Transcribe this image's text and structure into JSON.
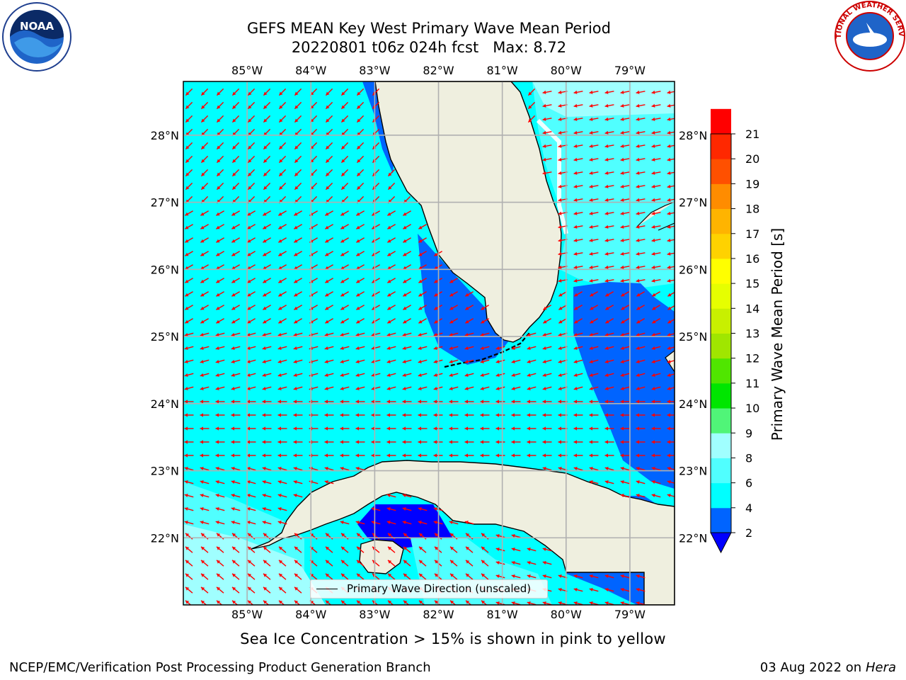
{
  "title": {
    "line1": "GEFS MEAN Key West Primary Wave Mean Period",
    "line2": "20220801 t06z 024h fcst   Max: 8.72"
  },
  "logos": {
    "left": "noaa-logo",
    "right": "national-weather-service-logo",
    "noaa_text": "NOAA",
    "nws_text": "NATIONAL WEATHER SERVICE"
  },
  "map": {
    "lon_labels": [
      "85°W",
      "84°W",
      "83°W",
      "82°W",
      "81°W",
      "80°W",
      "79°W"
    ],
    "lat_labels": [
      "28°N",
      "27°N",
      "26°N",
      "25°N",
      "24°N",
      "23°N",
      "22°N"
    ],
    "extent": {
      "lon_min": -86.0,
      "lon_max": -78.3,
      "lat_min": 21.0,
      "lat_max": 28.8
    },
    "gridlines": true,
    "vector_color": "#ff0000",
    "land_color": "#efefdf",
    "legend_label": "Primary Wave Direction (unscaled)"
  },
  "colorbar": {
    "label": "Primary Wave Mean Period [s]",
    "ticks": [
      "2",
      "4",
      "6",
      "8",
      "9",
      "10",
      "11",
      "12",
      "13",
      "14",
      "15",
      "16",
      "17",
      "18",
      "19",
      "20",
      "21"
    ],
    "colors": [
      "#0064ff",
      "#00ffff",
      "#50ffff",
      "#a0ffff",
      "#50f578",
      "#00e600",
      "#50e600",
      "#a0e600",
      "#c8f000",
      "#e6ff00",
      "#ffff00",
      "#ffd200",
      "#ffb400",
      "#ff8c00",
      "#ff5000",
      "#ff2800",
      "#ff0000"
    ],
    "under_color": "#0000ff",
    "extend": "min"
  },
  "subtitle": "Sea Ice Concentration > 15% is shown in pink to yellow",
  "footer": {
    "left": "NCEP/EMC/Verification Post Processing Product Generation Branch",
    "right_date": "03 Aug 2022 on",
    "right_host": "Hera"
  }
}
